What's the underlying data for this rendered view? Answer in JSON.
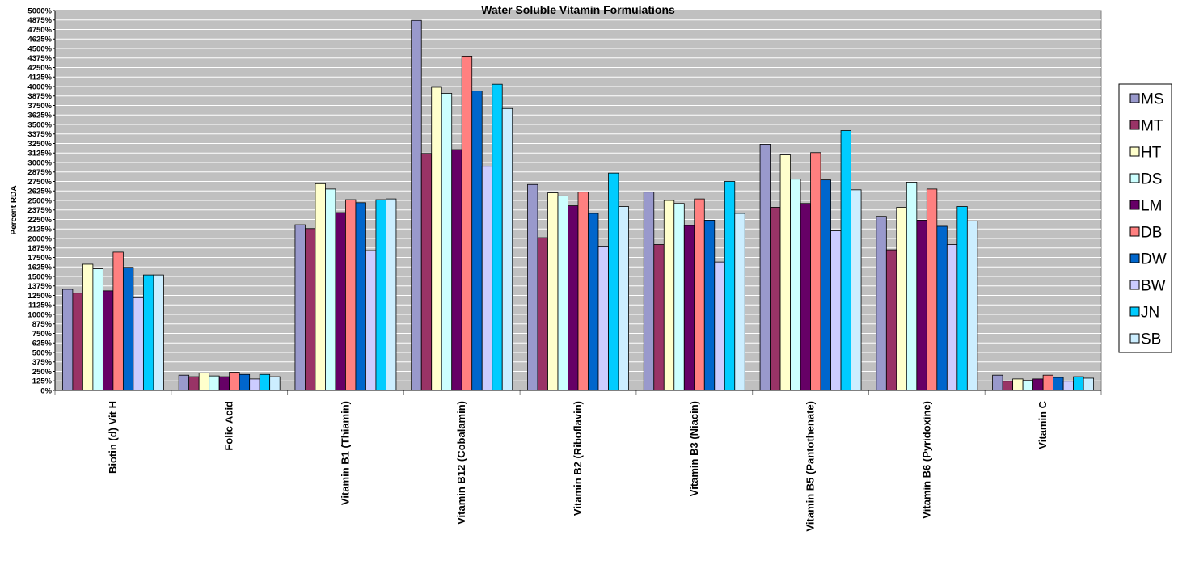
{
  "chart_data": {
    "type": "bar",
    "title": "Water Soluble Vitamin Formulations",
    "xlabel": "",
    "ylabel": "Percent RDA",
    "ylim": [
      0,
      5000
    ],
    "ytick_step": 125,
    "grid": true,
    "legend_position": "right",
    "categories": [
      "Biotin (d) Vit H",
      "Folic Acid",
      "Vitamin B1 (Thiamin)",
      "Vitamin B12 (Cobalamin)",
      "Vitamin B2 (Riboflavin)",
      "Vitamin B3 (Niacin)",
      "Vitamin B5 (Pantothenate)",
      "Vitamin B6 (Pyridoxine)",
      "Vitamin C"
    ],
    "series": [
      {
        "name": "MS",
        "color": "#9999cc",
        "values": [
          1330,
          200,
          2180,
          4870,
          2710,
          2610,
          3240,
          2290,
          200
        ]
      },
      {
        "name": "MT",
        "color": "#993366",
        "values": [
          1280,
          180,
          2130,
          3120,
          2010,
          1920,
          2410,
          1850,
          120
        ]
      },
      {
        "name": "HT",
        "color": "#ffffcc",
        "values": [
          1660,
          230,
          2720,
          3990,
          2600,
          2500,
          3100,
          2410,
          150
        ]
      },
      {
        "name": "DS",
        "color": "#ccffff",
        "values": [
          1600,
          190,
          2650,
          3910,
          2560,
          2460,
          2780,
          2740,
          130
        ]
      },
      {
        "name": "LM",
        "color": "#660066",
        "values": [
          1310,
          180,
          2340,
          3170,
          2430,
          2170,
          2460,
          2240,
          150
        ]
      },
      {
        "name": "DB",
        "color": "#ff8080",
        "values": [
          1820,
          240,
          2510,
          4400,
          2610,
          2520,
          3130,
          2650,
          200
        ]
      },
      {
        "name": "DW",
        "color": "#0066cc",
        "values": [
          1620,
          210,
          2470,
          3940,
          2330,
          2240,
          2770,
          2160,
          170
        ]
      },
      {
        "name": "BW",
        "color": "#ccccff",
        "values": [
          1220,
          150,
          1840,
          2950,
          1900,
          1690,
          2100,
          1920,
          120
        ]
      },
      {
        "name": "JN",
        "color": "#00ccff",
        "values": [
          1520,
          210,
          2510,
          4030,
          2860,
          2750,
          3420,
          2420,
          180
        ]
      },
      {
        "name": "SB",
        "color": "#cceeff",
        "values": [
          1520,
          180,
          2520,
          3710,
          2420,
          2330,
          2640,
          2230,
          160
        ]
      }
    ]
  }
}
